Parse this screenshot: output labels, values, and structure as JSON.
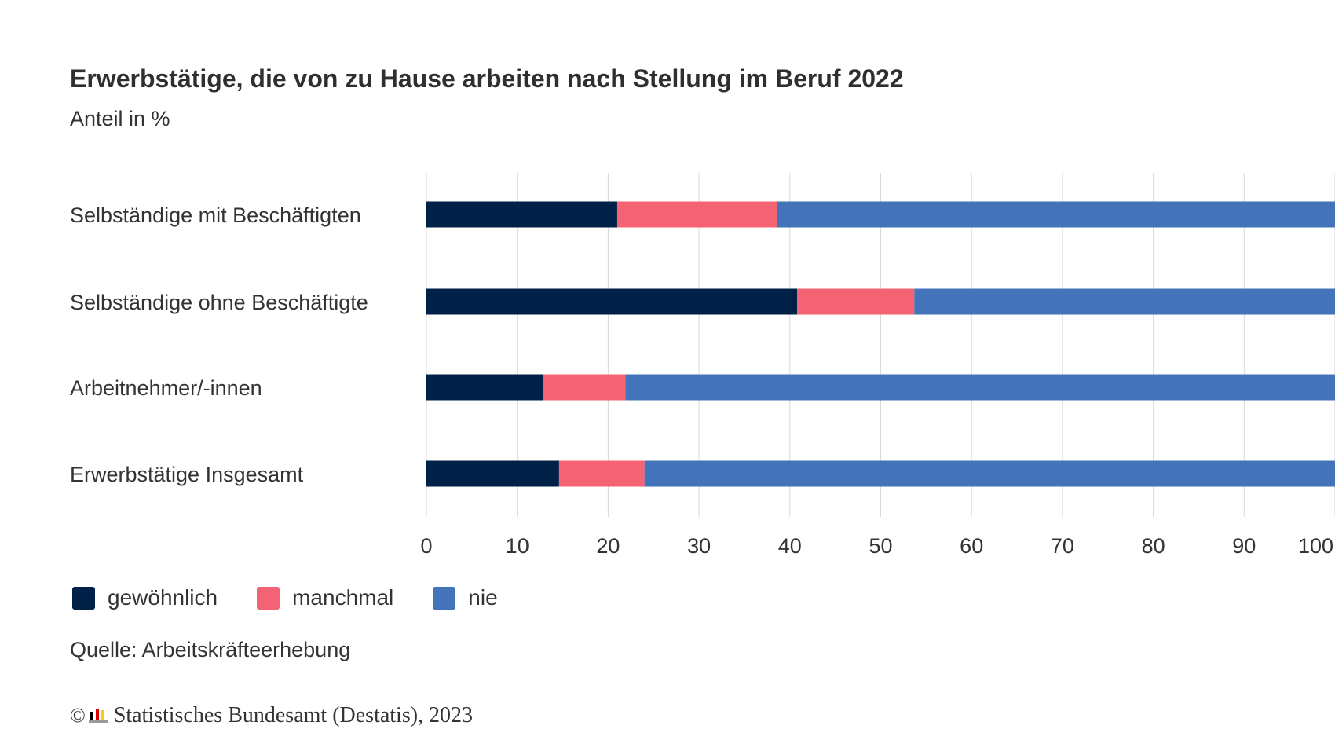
{
  "header": {
    "title": "Erwerbstätige, die von zu Hause arbeiten nach Stellung im Beruf 2022",
    "subtitle": "Anteil in %"
  },
  "chart_data": {
    "type": "bar",
    "orientation": "horizontal",
    "stacked": true,
    "title": "Erwerbstätige, die von zu Hause arbeiten nach Stellung im Beruf 2022",
    "subtitle": "Anteil in %",
    "categories": [
      "Selbständige mit Beschäftigten",
      "Selbständige ohne Beschäftigte",
      "Arbeitnehmer/-innen",
      "Erwerbstätige Insgesamt"
    ],
    "series": [
      {
        "name": "gewöhnlich",
        "color": "#002147",
        "values": [
          21.0,
          40.8,
          12.9,
          14.6
        ]
      },
      {
        "name": "manchmal",
        "color": "#f36374",
        "values": [
          17.6,
          12.9,
          9.0,
          9.4
        ]
      },
      {
        "name": "nie",
        "color": "#4374b9",
        "values": [
          61.4,
          46.3,
          78.1,
          76.0
        ]
      }
    ],
    "xlim": [
      0,
      100
    ],
    "xticks": [
      "0",
      "10",
      "20",
      "30",
      "40",
      "50",
      "60",
      "70",
      "80",
      "90",
      "100"
    ],
    "grid": true,
    "legend_position": "bottom-left"
  },
  "source": "Quelle: Arbeitskräfteerhebung",
  "copyright": {
    "symbol": "©",
    "text": "Statistisches Bundesamt (Destatis), 2023"
  }
}
